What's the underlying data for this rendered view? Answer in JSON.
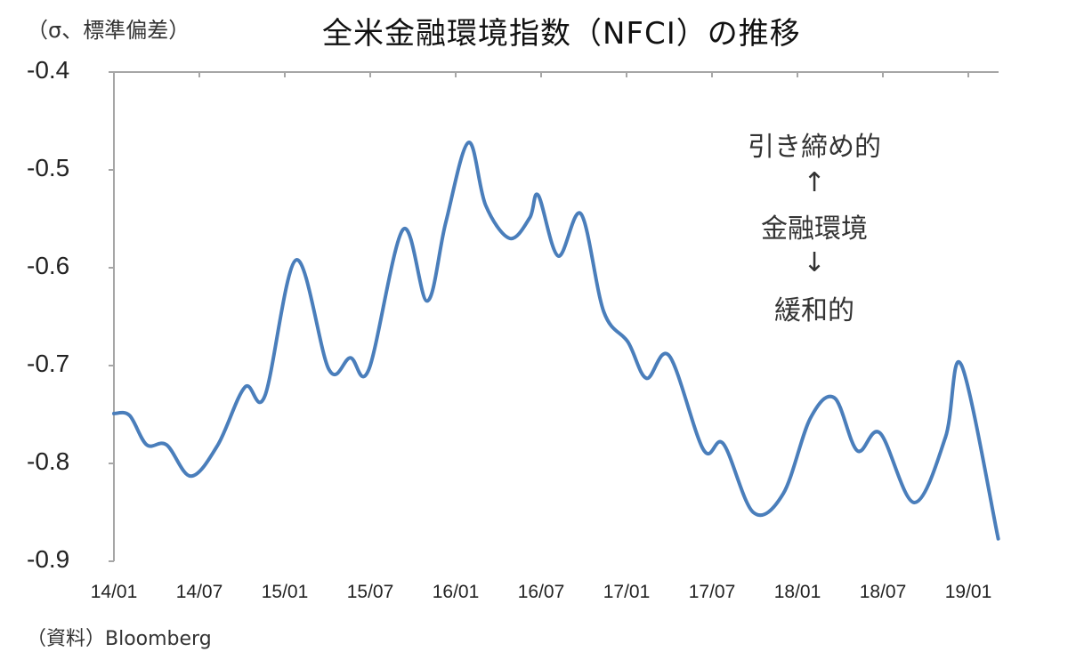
{
  "chart_data": {
    "type": "line",
    "title": "全米金融環境指数（NFCI）の推移",
    "ylabel": "（σ、標準偏差）",
    "xlabel": "",
    "source": "（資料）Bloomberg",
    "y_inverted": true,
    "ylim": [
      -0.9,
      -0.4
    ],
    "y_ticks": [
      "-0.4",
      "-0.5",
      "-0.6",
      "-0.7",
      "-0.8",
      "-0.9"
    ],
    "x_ticks": [
      "14/01",
      "14/07",
      "15/01",
      "15/07",
      "16/01",
      "16/07",
      "17/01",
      "17/07",
      "18/01",
      "18/07",
      "19/01"
    ],
    "grid": false,
    "legend": null,
    "line_color": "#4a7ebb",
    "annotations": {
      "top": "引き締め的",
      "up_arrow": "↑",
      "middle": "金融環境",
      "down_arrow": "↓",
      "bottom": "緩和的"
    },
    "series": [
      {
        "name": "NFCI",
        "x_months_from_2014_01": [
          0,
          1.1,
          2.3,
          3.7,
          5.4,
          7.3,
          9.2,
          10.6,
          12.8,
          15.1,
          16.6,
          17.9,
          20.3,
          22.0,
          23.3,
          24.9,
          26.1,
          27.8,
          29.2,
          29.8,
          31.2,
          32.8,
          34.4,
          36.1,
          37.4,
          39.0,
          41.4,
          42.8,
          44.9,
          47.0,
          48.9,
          50.6,
          52.2,
          53.8,
          56.2,
          58.4,
          59.5,
          62.1
        ],
        "values": [
          -0.749,
          -0.751,
          -0.781,
          -0.781,
          -0.813,
          -0.781,
          -0.722,
          -0.731,
          -0.592,
          -0.704,
          -0.692,
          -0.704,
          -0.561,
          -0.634,
          -0.554,
          -0.472,
          -0.536,
          -0.57,
          -0.549,
          -0.526,
          -0.588,
          -0.545,
          -0.645,
          -0.676,
          -0.713,
          -0.69,
          -0.786,
          -0.78,
          -0.85,
          -0.831,
          -0.754,
          -0.733,
          -0.787,
          -0.769,
          -0.84,
          -0.773,
          -0.699,
          -0.877
        ]
      }
    ]
  }
}
